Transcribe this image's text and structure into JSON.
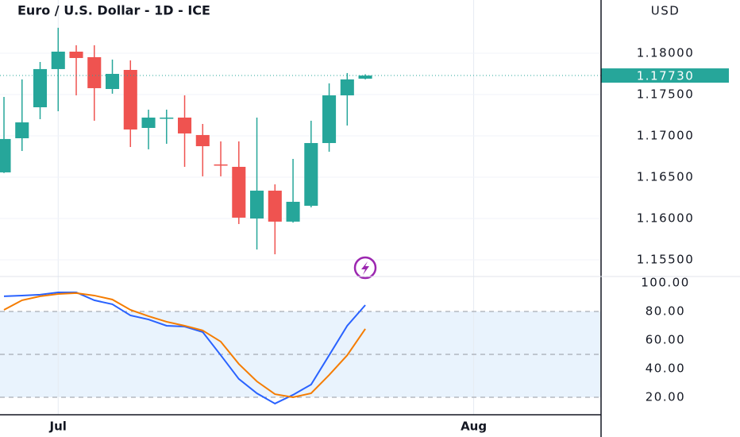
{
  "chart_data": [
    {
      "type": "candlestick",
      "title": "Euro / U.S. Dollar - 1D - ICE",
      "y_label": "USD",
      "categories": [
        null,
        null,
        null,
        null,
        null,
        null,
        null,
        null,
        null,
        null,
        null,
        null,
        null,
        null,
        null,
        null,
        null,
        null,
        null,
        null,
        null
      ],
      "open": [
        1.16558,
        1.16971,
        1.17346,
        1.17808,
        1.18019,
        1.17952,
        1.17567,
        1.17798,
        1.17096,
        1.1721,
        1.17221,
        1.1701,
        1.16654,
        1.16625,
        1.16,
        1.16337,
        1.15962,
        1.16154,
        1.16913,
        1.1749,
        1.17692
      ],
      "high": [
        1.17471,
        1.17683,
        1.17894,
        1.18308,
        1.18096,
        1.18096,
        1.17923,
        1.17913,
        1.17317,
        1.17317,
        1.1749,
        1.17144,
        1.16933,
        1.16933,
        1.17221,
        1.16413,
        1.16721,
        1.17183,
        1.17635,
        1.1776,
        1.17745
      ],
      "low": [
        1.1655,
        1.16817,
        1.17202,
        1.17298,
        1.1749,
        1.17183,
        1.1751,
        1.16865,
        1.16837,
        1.16904,
        1.16625,
        1.1651,
        1.1651,
        1.15933,
        1.15625,
        1.15567,
        1.1595,
        1.16135,
        1.16808,
        1.17125,
        1.17683
      ],
      "close": [
        1.16962,
        1.17163,
        1.17808,
        1.18019,
        1.17942,
        1.17577,
        1.1775,
        1.17077,
        1.17221,
        1.17221,
        1.17029,
        1.16875,
        1.16644,
        1.1601,
        1.16337,
        1.15962,
        1.16202,
        1.16913,
        1.1749,
        1.17683,
        1.1773
      ],
      "up_color": "#26a69a",
      "down_color": "#ef5350",
      "last_price": {
        "value": 1.1773,
        "label": "1.17730"
      },
      "xlim": [
        -0.22,
        33.05
      ],
      "xticks": [
        {
          "value": 3,
          "label": "Jul"
        },
        {
          "value": 26,
          "label": "Aug"
        }
      ],
      "ylim": [
        1.15298,
        1.18644
      ],
      "yticks": [
        {
          "value": 1.155,
          "label": "1.15500"
        },
        {
          "value": 1.16,
          "label": "1.16000"
        },
        {
          "value": 1.165,
          "label": "1.16500"
        },
        {
          "value": 1.17,
          "label": "1.17000"
        },
        {
          "value": 1.175,
          "label": "1.17500"
        },
        {
          "value": 1.18,
          "label": "1.18000"
        }
      ],
      "grid": true
    },
    {
      "type": "line",
      "series": [
        {
          "color": "#2962ff",
          "values": [
            90.6,
            91.1,
            91.7,
            93.3,
            93.3,
            87.8,
            85,
            77.2,
            74.4,
            70,
            69.4,
            65.6,
            49.4,
            32.8,
            22.8,
            15.6,
            21.7,
            28.9,
            49.4,
            70,
            84.4
          ]
        },
        {
          "color": "#f57c00",
          "values": [
            81.1,
            87.8,
            90.6,
            92.2,
            92.8,
            91.1,
            88.3,
            81.1,
            76.7,
            72.8,
            70,
            66.7,
            58.9,
            43.3,
            31.1,
            22.2,
            20,
            22.8,
            35.6,
            49.4,
            67.8
          ]
        }
      ],
      "xlim": [
        -0.22,
        33.05
      ],
      "ylim": [
        7.8,
        104.4
      ],
      "yticks": [
        {
          "value": 20,
          "label": "20.00"
        },
        {
          "value": 40,
          "label": "40.00"
        },
        {
          "value": 60,
          "label": "60.00"
        },
        {
          "value": 80,
          "label": "80.00"
        },
        {
          "value": 100,
          "label": "100.00"
        }
      ],
      "band": [
        20,
        80
      ],
      "levels": [
        20,
        50,
        80
      ]
    }
  ]
}
